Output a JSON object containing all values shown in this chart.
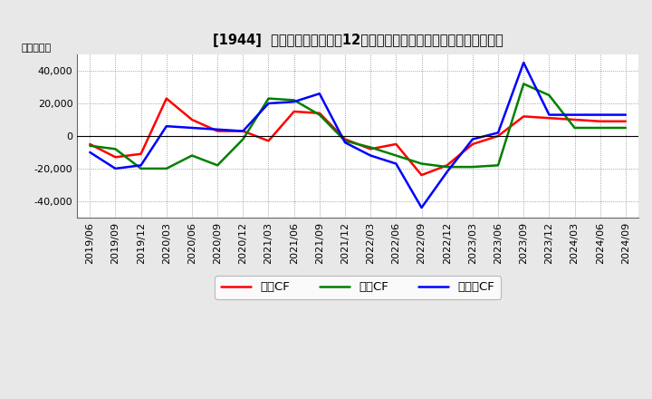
{
  "title": "[1944]  キャッシュフローの12か月移動合計の対前年同期増減額の推移",
  "ylabel": "（百万円）",
  "x_labels": [
    "2019/06",
    "2019/09",
    "2019/12",
    "2020/03",
    "2020/06",
    "2020/09",
    "2020/12",
    "2021/03",
    "2021/06",
    "2021/09",
    "2021/12",
    "2022/03",
    "2022/06",
    "2022/09",
    "2022/12",
    "2023/03",
    "2023/06",
    "2023/09",
    "2023/12",
    "2024/03",
    "2024/06",
    "2024/09"
  ],
  "operating_cf": [
    -5000,
    -13000,
    -11000,
    23000,
    10000,
    3000,
    3000,
    -3000,
    15000,
    14000,
    -2000,
    -8000,
    -5000,
    -24000,
    -18000,
    -5000,
    0,
    12000,
    11000,
    10000,
    9000,
    9000
  ],
  "investing_cf": [
    -6000,
    -8000,
    -20000,
    -20000,
    -12000,
    -18000,
    -2000,
    23000,
    22000,
    13000,
    -3000,
    -7000,
    -12000,
    -17000,
    -19000,
    -19000,
    -18000,
    32000,
    25000,
    5000,
    5000,
    5000
  ],
  "free_cf": [
    -10000,
    -20000,
    -18000,
    6000,
    5000,
    4000,
    3000,
    20000,
    21000,
    26000,
    -4000,
    -12000,
    -17000,
    -44000,
    -22000,
    -2000,
    2000,
    45000,
    13000,
    13000,
    13000,
    13000
  ],
  "ylim": [
    -50000,
    50000
  ],
  "yticks": [
    -40000,
    -20000,
    0,
    20000,
    40000
  ],
  "operating_color": "#ff0000",
  "investing_color": "#008000",
  "free_color": "#0000ff",
  "bg_color": "#e8e8e8",
  "plot_bg_color": "#ffffff",
  "grid_color": "#888888",
  "legend_labels": [
    "営業CF",
    "投資CF",
    "フリーCF"
  ]
}
